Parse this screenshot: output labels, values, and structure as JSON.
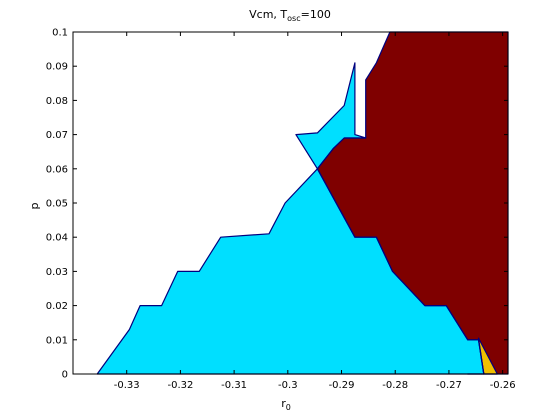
{
  "chart_data": {
    "type": "area",
    "title": {
      "main": "Vcm, T",
      "sub": "osc",
      "tail": "=100"
    },
    "xlabel": {
      "main": "r",
      "sub": "0"
    },
    "ylabel": "p",
    "xlim": [
      -0.34,
      -0.259
    ],
    "ylim": [
      0,
      0.1
    ],
    "xticks": [
      -0.33,
      -0.32,
      -0.31,
      -0.3,
      -0.29,
      -0.28,
      -0.27,
      -0.26
    ],
    "xtick_labels": [
      "-0.33",
      "-0.32",
      "-0.31",
      "-0.3",
      "-0.29",
      "-0.28",
      "-0.27",
      "-0.26"
    ],
    "yticks": [
      0,
      0.01,
      0.02,
      0.03,
      0.04,
      0.05,
      0.06,
      0.07,
      0.08,
      0.09,
      0.1
    ],
    "ytick_labels": [
      "0",
      "0.01",
      "0.02",
      "0.03",
      "0.04",
      "0.05",
      "0.06",
      "0.07",
      "0.08",
      "0.09",
      "0.1"
    ],
    "grid": false,
    "colors": {
      "background": "#ffffff",
      "boundary": "#00007f",
      "axes": "#000000"
    },
    "regions": [
      {
        "color": "#7f0000",
        "points": [
          [
            -0.2665,
            0
          ],
          [
            -0.2635,
            0
          ],
          [
            -0.2645,
            0.01
          ],
          [
            -0.2665,
            0.01
          ],
          [
            -0.2705,
            0.02
          ],
          [
            -0.2745,
            0.02
          ],
          [
            -0.2805,
            0.03
          ],
          [
            -0.2835,
            0.04
          ],
          [
            -0.2875,
            0.04
          ],
          [
            -0.2945,
            0.06
          ],
          [
            -0.2915,
            0.066
          ],
          [
            -0.2895,
            0.069
          ],
          [
            -0.2855,
            0.069
          ],
          [
            -0.2855,
            0.086
          ],
          [
            -0.2835,
            0.091
          ],
          [
            -0.281,
            0.1
          ],
          [
            -0.259,
            0.1
          ],
          [
            -0.259,
            0
          ]
        ]
      },
      {
        "color": "#00dfff",
        "points": [
          [
            -0.3355,
            0
          ],
          [
            -0.3295,
            0.013
          ],
          [
            -0.3275,
            0.02
          ],
          [
            -0.3235,
            0.02
          ],
          [
            -0.3205,
            0.03
          ],
          [
            -0.3165,
            0.03
          ],
          [
            -0.3125,
            0.04
          ],
          [
            -0.3035,
            0.041
          ],
          [
            -0.3005,
            0.05
          ],
          [
            -0.2945,
            0.06
          ],
          [
            -0.2985,
            0.07
          ],
          [
            -0.2945,
            0.0705
          ],
          [
            -0.2895,
            0.0785
          ],
          [
            -0.2875,
            0.091
          ],
          [
            -0.2875,
            0.07
          ],
          [
            -0.2855,
            0.069
          ],
          [
            -0.2895,
            0.069
          ],
          [
            -0.2915,
            0.066
          ],
          [
            -0.2945,
            0.06
          ],
          [
            -0.2875,
            0.04
          ],
          [
            -0.2835,
            0.04
          ],
          [
            -0.2805,
            0.03
          ],
          [
            -0.2745,
            0.02
          ],
          [
            -0.2705,
            0.02
          ],
          [
            -0.2665,
            0.01
          ],
          [
            -0.2645,
            0.01
          ],
          [
            -0.2635,
            0
          ]
        ]
      },
      {
        "color": "#f0c000",
        "points": [
          [
            -0.2635,
            0
          ],
          [
            -0.261,
            0
          ],
          [
            -0.2645,
            0.0105
          ]
        ]
      }
    ]
  }
}
